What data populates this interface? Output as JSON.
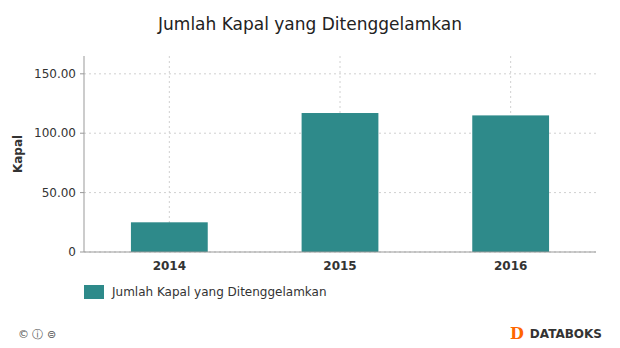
{
  "chart_data": {
    "type": "bar",
    "title": "Jumlah Kapal yang Ditenggelamkan",
    "categories": [
      "2014",
      "2015",
      "2016"
    ],
    "series": [
      {
        "name": "Jumlah Kapal yang Ditenggelamkan",
        "color": "#2e8a8a",
        "values": [
          25,
          117,
          115
        ]
      }
    ],
    "ylabel": "Kapal",
    "ylim": [
      0,
      165
    ],
    "yticks": [
      0,
      {
        "value": 50,
        "label": "50.00"
      },
      {
        "value": 100,
        "label": "100.00"
      },
      {
        "value": 150,
        "label": "150.00"
      }
    ],
    "grid": true,
    "legend": "bottom",
    "annotations": [
      "©  ⓘ  ⊜",
      "DATABOKS",
      "D"
    ]
  }
}
